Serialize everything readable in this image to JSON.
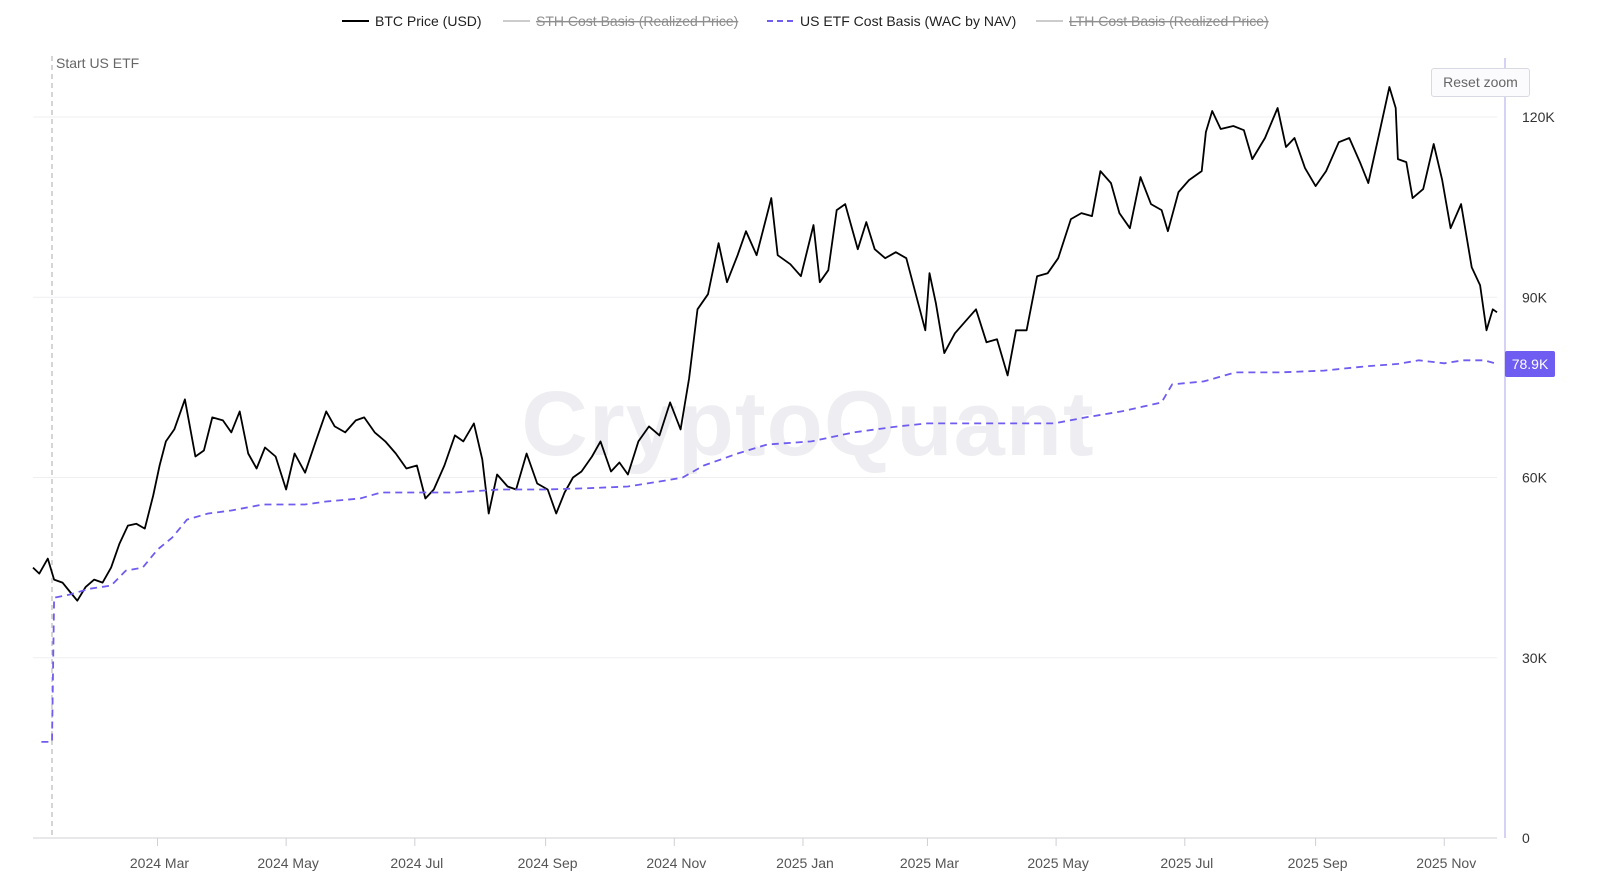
{
  "chart_data": {
    "type": "line",
    "title": "",
    "watermark": "CryptoQuant",
    "legend": [
      {
        "name": "BTC Price (USD)",
        "color": "#000000",
        "style": "solid",
        "enabled": true
      },
      {
        "name": "STH Cost Basis (Realized Price)",
        "color": "#cccccc",
        "style": "solid",
        "enabled": false
      },
      {
        "name": "US ETF Cost Basis (WAC by NAV)",
        "color": "#6f5cf0",
        "style": "dashed",
        "enabled": true
      },
      {
        "name": "LTH Cost Basis (Realized Price)",
        "color": "#cccccc",
        "style": "solid",
        "enabled": false
      }
    ],
    "legend_position": "top-center",
    "x_range": [
      "2024-01-02",
      "2025-11-26"
    ],
    "x_tick_labels": [
      "2024 Mar",
      "2024 May",
      "2024 Jul",
      "2024 Sep",
      "2024 Nov",
      "2025 Jan",
      "2025 Mar",
      "2025 May",
      "2025 Jul",
      "2025 Sep",
      "2025 Nov"
    ],
    "x_tick_dates": [
      "2024-03-01",
      "2024-05-01",
      "2024-07-01",
      "2024-09-01",
      "2024-11-01",
      "2025-01-01",
      "2025-03-01",
      "2025-05-01",
      "2025-07-01",
      "2025-09-01",
      "2025-11-01"
    ],
    "y_range": [
      0,
      130000
    ],
    "y_tick_labels": [
      "0",
      "30K",
      "60K",
      "90K",
      "120K"
    ],
    "y_tick_values": [
      0,
      30000,
      60000,
      90000,
      120000
    ],
    "y_axis_side": "right",
    "grid": true,
    "annotation": {
      "label": "Start US ETF",
      "date": "2024-01-11"
    },
    "last_value_label": "78.9K",
    "last_value_color": "#6f5cf0",
    "reset_zoom_label": "Reset zoom",
    "series": [
      {
        "name": "BTC Price (USD)",
        "color": "#000000",
        "points": [
          [
            "2024-01-02",
            45000
          ],
          [
            "2024-01-05",
            44000
          ],
          [
            "2024-01-09",
            46500
          ],
          [
            "2024-01-12",
            43000
          ],
          [
            "2024-01-16",
            42500
          ],
          [
            "2024-01-19",
            41200
          ],
          [
            "2024-01-23",
            39500
          ],
          [
            "2024-01-27",
            41800
          ],
          [
            "2024-01-31",
            43000
          ],
          [
            "2024-02-04",
            42500
          ],
          [
            "2024-02-08",
            45000
          ],
          [
            "2024-02-12",
            49000
          ],
          [
            "2024-02-16",
            52000
          ],
          [
            "2024-02-20",
            52300
          ],
          [
            "2024-02-24",
            51500
          ],
          [
            "2024-02-28",
            57000
          ],
          [
            "2024-03-02",
            62000
          ],
          [
            "2024-03-05",
            66000
          ],
          [
            "2024-03-09",
            68000
          ],
          [
            "2024-03-14",
            73000
          ],
          [
            "2024-03-19",
            63500
          ],
          [
            "2024-03-23",
            64500
          ],
          [
            "2024-03-27",
            70000
          ],
          [
            "2024-04-01",
            69500
          ],
          [
            "2024-04-05",
            67500
          ],
          [
            "2024-04-09",
            71000
          ],
          [
            "2024-04-13",
            64000
          ],
          [
            "2024-04-17",
            61500
          ],
          [
            "2024-04-21",
            65000
          ],
          [
            "2024-04-26",
            63500
          ],
          [
            "2024-05-01",
            58000
          ],
          [
            "2024-05-05",
            64000
          ],
          [
            "2024-05-10",
            60800
          ],
          [
            "2024-05-15",
            66000
          ],
          [
            "2024-05-20",
            71000
          ],
          [
            "2024-05-24",
            68500
          ],
          [
            "2024-05-29",
            67500
          ],
          [
            "2024-06-03",
            69500
          ],
          [
            "2024-06-07",
            70000
          ],
          [
            "2024-06-12",
            67500
          ],
          [
            "2024-06-17",
            66000
          ],
          [
            "2024-06-22",
            64000
          ],
          [
            "2024-06-27",
            61500
          ],
          [
            "2024-07-02",
            62000
          ],
          [
            "2024-07-06",
            56500
          ],
          [
            "2024-07-10",
            58000
          ],
          [
            "2024-07-15",
            62000
          ],
          [
            "2024-07-20",
            67000
          ],
          [
            "2024-07-24",
            66000
          ],
          [
            "2024-07-29",
            69000
          ],
          [
            "2024-08-02",
            63000
          ],
          [
            "2024-08-05",
            54000
          ],
          [
            "2024-08-09",
            60500
          ],
          [
            "2024-08-14",
            58500
          ],
          [
            "2024-08-18",
            58000
          ],
          [
            "2024-08-23",
            64000
          ],
          [
            "2024-08-28",
            59000
          ],
          [
            "2024-09-02",
            58000
          ],
          [
            "2024-09-06",
            54000
          ],
          [
            "2024-09-10",
            57500
          ],
          [
            "2024-09-14",
            60000
          ],
          [
            "2024-09-18",
            61000
          ],
          [
            "2024-09-23",
            63500
          ],
          [
            "2024-09-27",
            66000
          ],
          [
            "2024-10-02",
            61000
          ],
          [
            "2024-10-06",
            62500
          ],
          [
            "2024-10-10",
            60500
          ],
          [
            "2024-10-15",
            66000
          ],
          [
            "2024-10-20",
            68500
          ],
          [
            "2024-10-25",
            67000
          ],
          [
            "2024-10-30",
            72500
          ],
          [
            "2024-11-04",
            68000
          ],
          [
            "2024-11-08",
            76500
          ],
          [
            "2024-11-12",
            88000
          ],
          [
            "2024-11-17",
            90500
          ],
          [
            "2024-11-22",
            99000
          ],
          [
            "2024-11-26",
            92500
          ],
          [
            "2024-12-01",
            97000
          ],
          [
            "2024-12-05",
            101000
          ],
          [
            "2024-12-10",
            97000
          ],
          [
            "2024-12-17",
            106500
          ],
          [
            "2024-12-20",
            97000
          ],
          [
            "2024-12-26",
            95500
          ],
          [
            "2024-12-31",
            93500
          ],
          [
            "2025-01-06",
            102000
          ],
          [
            "2025-01-09",
            92500
          ],
          [
            "2025-01-13",
            94500
          ],
          [
            "2025-01-17",
            104500
          ],
          [
            "2025-01-21",
            105500
          ],
          [
            "2025-01-27",
            98000
          ],
          [
            "2025-01-31",
            102500
          ],
          [
            "2025-02-04",
            98000
          ],
          [
            "2025-02-09",
            96500
          ],
          [
            "2025-02-14",
            97500
          ],
          [
            "2025-02-19",
            96500
          ],
          [
            "2025-02-25",
            88500
          ],
          [
            "2025-02-28",
            84500
          ],
          [
            "2025-03-02",
            94000
          ],
          [
            "2025-03-05",
            89000
          ],
          [
            "2025-03-09",
            80700
          ],
          [
            "2025-03-14",
            84000
          ],
          [
            "2025-03-19",
            86000
          ],
          [
            "2025-03-24",
            88000
          ],
          [
            "2025-03-29",
            82500
          ],
          [
            "2025-04-03",
            83000
          ],
          [
            "2025-04-08",
            77000
          ],
          [
            "2025-04-12",
            84500
          ],
          [
            "2025-04-17",
            84500
          ],
          [
            "2025-04-22",
            93500
          ],
          [
            "2025-04-27",
            94000
          ],
          [
            "2025-05-02",
            96500
          ],
          [
            "2025-05-08",
            103000
          ],
          [
            "2025-05-13",
            104000
          ],
          [
            "2025-05-18",
            103500
          ],
          [
            "2025-05-22",
            111000
          ],
          [
            "2025-05-27",
            109000
          ],
          [
            "2025-05-31",
            104000
          ],
          [
            "2025-06-05",
            101500
          ],
          [
            "2025-06-10",
            110000
          ],
          [
            "2025-06-15",
            105500
          ],
          [
            "2025-06-20",
            104500
          ],
          [
            "2025-06-23",
            101000
          ],
          [
            "2025-06-28",
            107500
          ],
          [
            "2025-07-03",
            109500
          ],
          [
            "2025-07-09",
            111000
          ],
          [
            "2025-07-11",
            117500
          ],
          [
            "2025-07-14",
            121000
          ],
          [
            "2025-07-18",
            118000
          ],
          [
            "2025-07-24",
            118500
          ],
          [
            "2025-07-29",
            117800
          ],
          [
            "2025-08-02",
            113000
          ],
          [
            "2025-08-08",
            116500
          ],
          [
            "2025-08-14",
            121500
          ],
          [
            "2025-08-18",
            115000
          ],
          [
            "2025-08-22",
            116500
          ],
          [
            "2025-08-27",
            111500
          ],
          [
            "2025-09-01",
            108500
          ],
          [
            "2025-09-06",
            111000
          ],
          [
            "2025-09-12",
            115800
          ],
          [
            "2025-09-17",
            116500
          ],
          [
            "2025-09-22",
            112500
          ],
          [
            "2025-09-26",
            109000
          ],
          [
            "2025-10-01",
            117000
          ],
          [
            "2025-10-06",
            125000
          ],
          [
            "2025-10-09",
            121500
          ],
          [
            "2025-10-10",
            113000
          ],
          [
            "2025-10-14",
            112500
          ],
          [
            "2025-10-17",
            106500
          ],
          [
            "2025-10-22",
            108000
          ],
          [
            "2025-10-27",
            115500
          ],
          [
            "2025-10-31",
            109500
          ],
          [
            "2025-11-04",
            101500
          ],
          [
            "2025-11-09",
            105500
          ],
          [
            "2025-11-14",
            95000
          ],
          [
            "2025-11-18",
            92000
          ],
          [
            "2025-11-21",
            84500
          ],
          [
            "2025-11-24",
            88000
          ],
          [
            "2025-11-26",
            87500
          ]
        ]
      },
      {
        "name": "US ETF Cost Basis (WAC by NAV)",
        "color": "#6f5cf0",
        "points": [
          [
            "2024-01-06",
            16000
          ],
          [
            "2024-01-11",
            16000
          ],
          [
            "2024-01-12",
            40000
          ],
          [
            "2024-01-19",
            40500
          ],
          [
            "2024-01-29",
            41500
          ],
          [
            "2024-02-08",
            42000
          ],
          [
            "2024-02-15",
            44500
          ],
          [
            "2024-02-23",
            45000
          ],
          [
            "2024-03-01",
            48000
          ],
          [
            "2024-03-08",
            50000
          ],
          [
            "2024-03-15",
            53000
          ],
          [
            "2024-03-25",
            54000
          ],
          [
            "2024-04-05",
            54500
          ],
          [
            "2024-04-20",
            55500
          ],
          [
            "2024-05-10",
            55500
          ],
          [
            "2024-05-20",
            56000
          ],
          [
            "2024-06-05",
            56500
          ],
          [
            "2024-06-15",
            57500
          ],
          [
            "2024-07-01",
            57500
          ],
          [
            "2024-07-20",
            57500
          ],
          [
            "2024-08-10",
            58000
          ],
          [
            "2024-09-01",
            58000
          ],
          [
            "2024-09-20",
            58200
          ],
          [
            "2024-10-10",
            58500
          ],
          [
            "2024-10-28",
            59500
          ],
          [
            "2024-11-05",
            60000
          ],
          [
            "2024-11-15",
            62000
          ],
          [
            "2024-12-01",
            64000
          ],
          [
            "2024-12-15",
            65500
          ],
          [
            "2025-01-05",
            66000
          ],
          [
            "2025-01-25",
            67500
          ],
          [
            "2025-02-15",
            68500
          ],
          [
            "2025-03-01",
            69000
          ],
          [
            "2025-03-31",
            69000
          ],
          [
            "2025-04-30",
            69000
          ],
          [
            "2025-05-15",
            70000
          ],
          [
            "2025-06-01",
            71000
          ],
          [
            "2025-06-20",
            72500
          ],
          [
            "2025-06-25",
            75500
          ],
          [
            "2025-07-10",
            76000
          ],
          [
            "2025-07-25",
            77500
          ],
          [
            "2025-08-15",
            77500
          ],
          [
            "2025-09-05",
            77800
          ],
          [
            "2025-09-25",
            78500
          ],
          [
            "2025-10-10",
            78900
          ],
          [
            "2025-10-20",
            79500
          ],
          [
            "2025-11-01",
            79000
          ],
          [
            "2025-11-10",
            79500
          ],
          [
            "2025-11-20",
            79500
          ],
          [
            "2025-11-26",
            78900
          ]
        ]
      }
    ]
  }
}
